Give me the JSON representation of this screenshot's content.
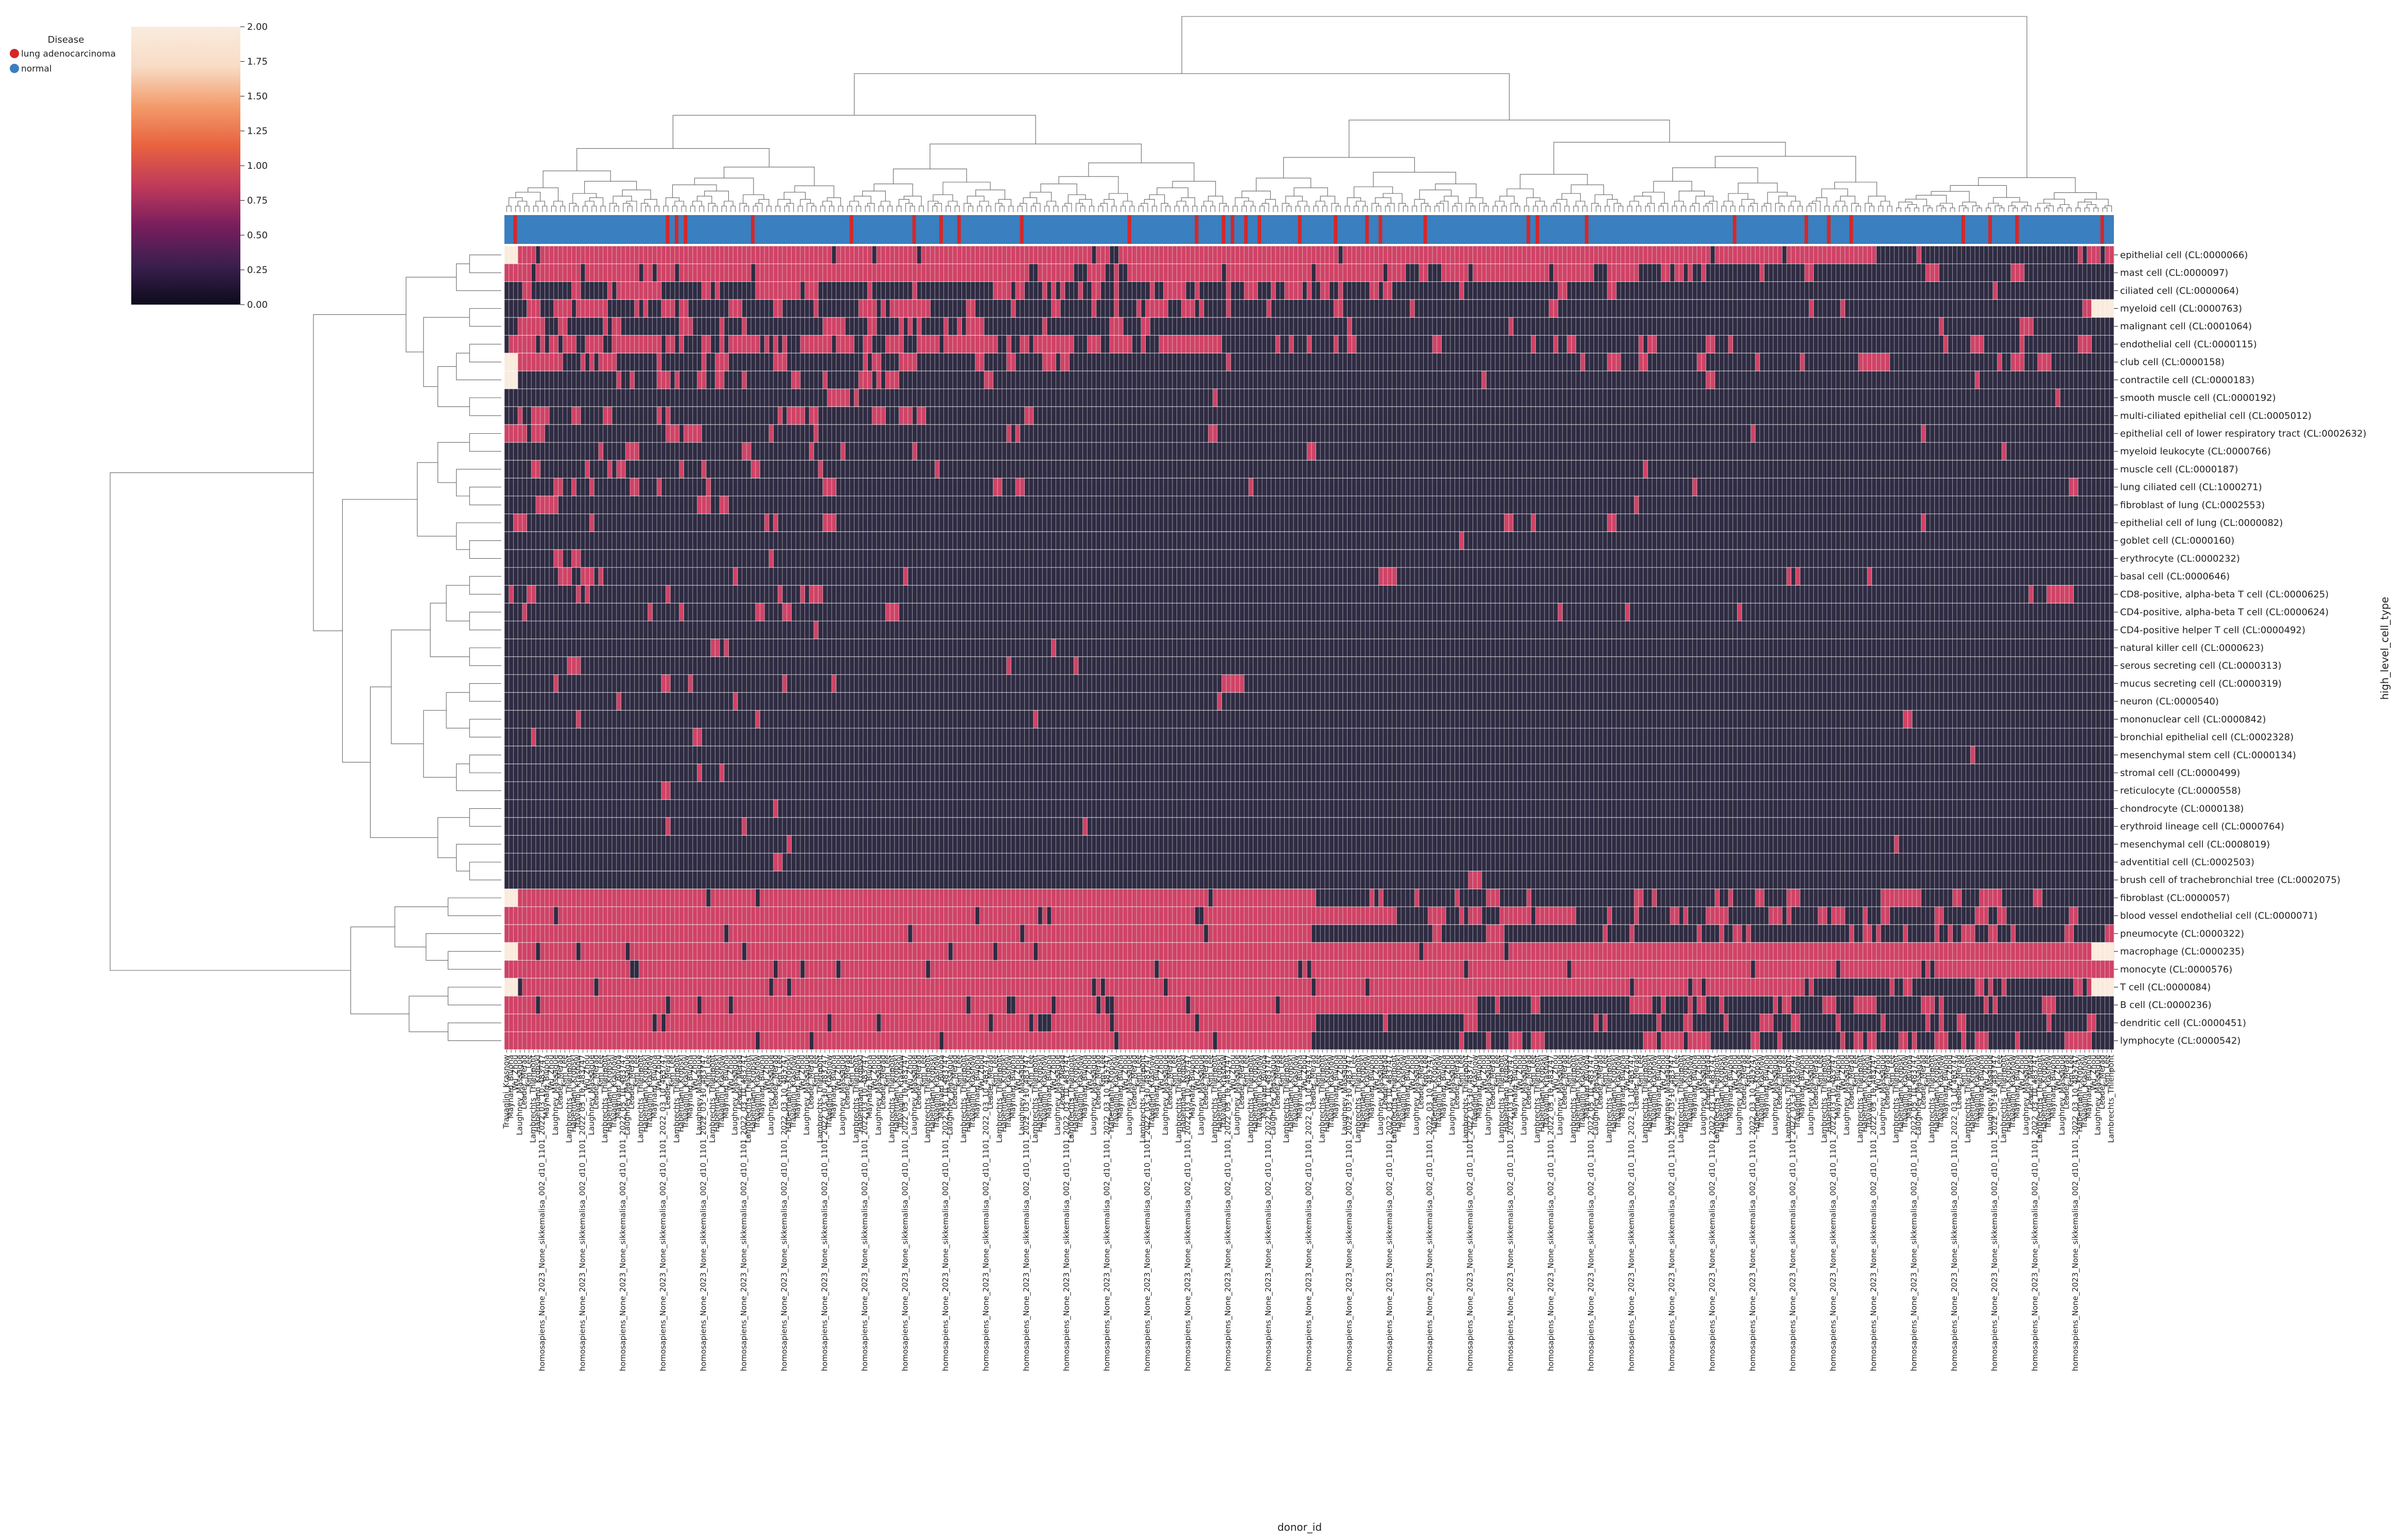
{
  "chart_data": {
    "type": "heatmap",
    "subtype": "clustermap",
    "xlabel": "donor_id",
    "ylabel": "high_level_cell_type",
    "n_columns": 359,
    "colorbar": {
      "min": 0,
      "max": 2,
      "ticks": [
        "0.00",
        "0.25",
        "0.50",
        "0.75",
        "1.00",
        "1.25",
        "1.50",
        "1.75",
        "2.00"
      ]
    },
    "colormap": [
      "#0d0b1c",
      "#3b1f4e",
      "#7a1e5e",
      "#c03a5a",
      "#e8623f",
      "#f39b6b",
      "#f8dcc6",
      "#faebdd"
    ],
    "cell_value_palette": {
      "0": "#2e2b42",
      "1": "#cf4366",
      "2": "#faebdd"
    },
    "legend": {
      "title": "Disease",
      "placement": "top-left",
      "entries": [
        {
          "label": "lung adenocarcinoma",
          "color": "#d62728"
        },
        {
          "label": "normal",
          "color": "#3a7fbf"
        }
      ]
    },
    "row_labels": [
      "epithelial cell (CL:0000066)",
      "mast cell (CL:0000097)",
      "ciliated cell (CL:0000064)",
      "myeloid cell (CL:0000763)",
      "malignant cell (CL:0001064)",
      "endothelial cell (CL:0000115)",
      "club cell (CL:0000158)",
      "contractile cell (CL:0000183)",
      "smooth muscle cell (CL:0000192)",
      "multi-ciliated epithelial cell (CL:0005012)",
      "epithelial cell of lower respiratory tract (CL:0002632)",
      "myeloid leukocyte (CL:0000766)",
      "muscle cell (CL:0000187)",
      "lung ciliated cell (CL:1000271)",
      "fibroblast of lung (CL:0002553)",
      "epithelial cell of lung (CL:0000082)",
      "goblet cell (CL:0000160)",
      "erythrocyte (CL:0000232)",
      "basal cell (CL:0000646)",
      "CD8-positive, alpha-beta T cell (CL:0000625)",
      "CD4-positive, alpha-beta T cell (CL:0000624)",
      "CD4-positive helper T cell (CL:0000492)",
      "natural killer cell (CL:0000623)",
      "serous secreting cell (CL:0000313)",
      "mucus secreting cell (CL:0000319)",
      "neuron (CL:0000540)",
      "mononuclear cell (CL:0000842)",
      "bronchial epithelial cell (CL:0002328)",
      "mesenchymal stem cell (CL:0000134)",
      "stromal cell (CL:0000499)",
      "reticulocyte (CL:0000558)",
      "chondrocyte (CL:0000138)",
      "erythroid lineage cell (CL:0000764)",
      "mesenchymal cell (CL:0008019)",
      "adventitial cell (CL:0002503)",
      "brush cell of trachebronchial tree (CL:0002075)",
      "fibroblast (CL:0000057)",
      "blood vessel endothelial cell (CL:0000071)",
      "pneumocyte (CL:0000322)",
      "macrophage (CL:0000235)",
      "monocyte (CL:0000576)",
      "T cell (CL:0000084)",
      "B cell (CL:0000236)",
      "dendritic cell (CL:0000451)",
      "lymphocyte (CL:0000542)"
    ],
    "row_density": [
      0.35,
      0.3,
      0.12,
      0.12,
      0.08,
      0.22,
      0.12,
      0.08,
      0.02,
      0.07,
      0.07,
      0.05,
      0.03,
      0.04,
      0.03,
      0.03,
      0.02,
      0.02,
      0.02,
      0.03,
      0.02,
      0.01,
      0.01,
      0.01,
      0.01,
      0.01,
      0.01,
      0.01,
      0.01,
      0.01,
      0.01,
      0.01,
      0.01,
      0.01,
      0.01,
      0.01,
      0.5,
      0.5,
      0.5,
      0.55,
      0.6,
      0.55,
      0.45,
      0.4,
      0.4
    ],
    "row_focus_end": [
      0.85,
      0.75,
      0.55,
      0.45,
      0.4,
      0.45,
      0.35,
      0.3,
      0.25,
      0.25,
      0.25,
      0.25,
      0.2,
      0.2,
      0.2,
      0.2,
      0.2,
      0.2,
      0.2,
      0.2,
      0.2,
      0.2,
      0.2,
      0.2,
      0.2,
      0.2,
      0.2,
      0.2,
      0.2,
      0.2,
      0.2,
      0.2,
      0.2,
      0.2,
      0.2,
      0.2,
      0.5,
      0.55,
      0.5,
      1.0,
      1.0,
      0.8,
      0.6,
      0.5,
      0.5
    ],
    "disease_red_columns": [
      2,
      36,
      38,
      40,
      55,
      77,
      91,
      97,
      101,
      115,
      139,
      154,
      160,
      162,
      165,
      168,
      177,
      185,
      192,
      195,
      205,
      228,
      230,
      241,
      274,
      290,
      295,
      300,
      325,
      331,
      337,
      356
    ],
    "visible_column_labels": [
      "Travaglini_Krasnow",
      "Habermann_Kropski",
      "Lambrechts_Thienpont",
      "Kim_Lee",
      "Leader_Merad",
      "Laughney_Massague",
      "Wu_Zhou",
      "Maynard_Bivona",
      "homosapiens_None_2023_None_sikkemalisa_002_d10_1101_2022_03_10_483747"
    ],
    "dendrogram_note": "hierarchical clustering trees on rows (left) and columns (top)"
  }
}
